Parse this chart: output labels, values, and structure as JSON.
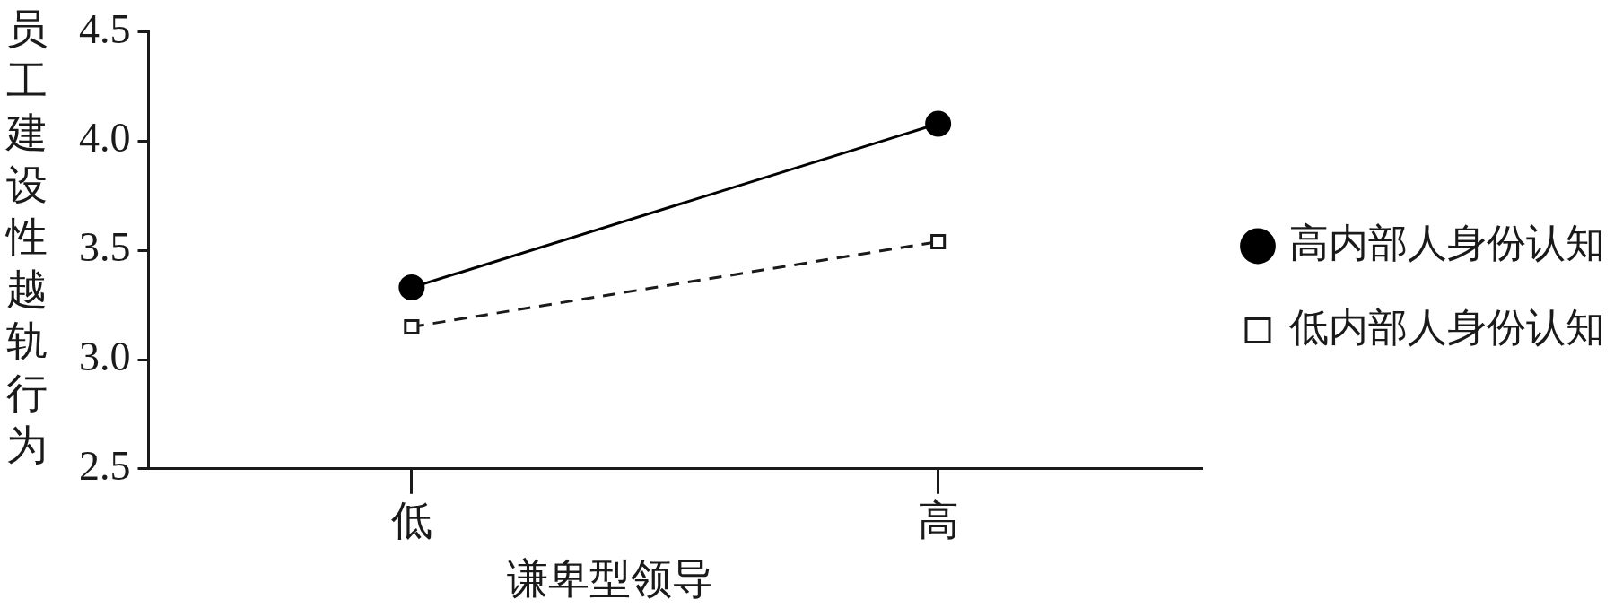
{
  "chart_data": {
    "type": "line",
    "xlabel": "谦卑型领导",
    "ylabel": "员工建设性越轨行为",
    "categories": [
      "低",
      "高"
    ],
    "ylim": [
      2.5,
      4.5
    ],
    "yticks": [
      {
        "value": 2.5,
        "label": "2.5"
      },
      {
        "value": 3,
        "label": "3.0"
      },
      {
        "value": 3.5,
        "label": "3.5"
      },
      {
        "value": 4,
        "label": "4.0"
      },
      {
        "value": 4.5,
        "label": "4.5"
      }
    ],
    "grid": false,
    "legend": "right",
    "series": [
      {
        "name": "高内部人身份认知",
        "color": "#000000",
        "values": [
          3.33,
          4.08
        ],
        "marker": "circle",
        "line_style": "solid"
      },
      {
        "name": "低内部人身份认知",
        "color": "#1a1a1a",
        "values": [
          3.15,
          3.54
        ],
        "marker": "square",
        "line_style": "dashed"
      }
    ]
  }
}
